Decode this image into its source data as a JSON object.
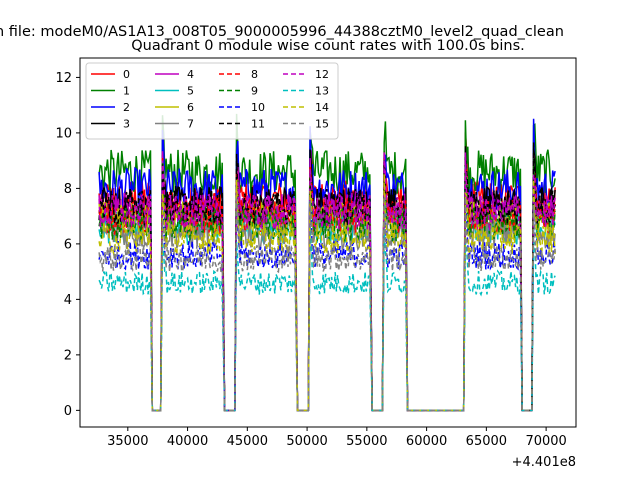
{
  "window": {
    "suptitle": "n file: modeM0/AS1A13_008T05_9000005996_44388cztM0_level2_quad_clean"
  },
  "chart_data": {
    "type": "line",
    "title": "Quadrant 0 module wise count rates with 100.0s bins.",
    "xlabel": "",
    "ylabel": "",
    "x_offset_label": "+4.401e8",
    "xlim": [
      31000,
      72500
    ],
    "ylim": [
      -0.6,
      12.7
    ],
    "xticks": [
      35000,
      40000,
      45000,
      50000,
      55000,
      60000,
      65000,
      70000
    ],
    "yticks": [
      0,
      2,
      4,
      6,
      8,
      10,
      12
    ],
    "grid": false,
    "legend_placement": "top-left",
    "legend_ncol": 4,
    "segments": [
      [
        32600,
        36900
      ],
      [
        37900,
        42950
      ],
      [
        44100,
        49050
      ],
      [
        50250,
        55300
      ],
      [
        56450,
        58250
      ],
      [
        63250,
        67850
      ],
      [
        68950,
        70800
      ]
    ],
    "zero_gaps": [
      [
        37050,
        37750
      ],
      [
        43100,
        43950
      ],
      [
        49200,
        50100
      ],
      [
        55450,
        56300
      ],
      [
        58400,
        63100
      ],
      [
        68000,
        68800
      ]
    ],
    "series": [
      {
        "name": "0",
        "color": "#ff0000",
        "dash": "solid",
        "mean": 7.6
      },
      {
        "name": "1",
        "color": "#008000",
        "dash": "solid",
        "mean": 8.6
      },
      {
        "name": "2",
        "color": "#0000ff",
        "dash": "solid",
        "mean": 8.0
      },
      {
        "name": "3",
        "color": "#000000",
        "dash": "solid",
        "mean": 7.4
      },
      {
        "name": "4",
        "color": "#bf00bf",
        "dash": "solid",
        "mean": 7.2
      },
      {
        "name": "5",
        "color": "#00bfbf",
        "dash": "solid",
        "mean": 6.6
      },
      {
        "name": "6",
        "color": "#bfbf00",
        "dash": "solid",
        "mean": 6.9
      },
      {
        "name": "7",
        "color": "#808080",
        "dash": "solid",
        "mean": 6.4
      },
      {
        "name": "8",
        "color": "#ff0000",
        "dash": "dashed",
        "mean": 7.0
      },
      {
        "name": "9",
        "color": "#008000",
        "dash": "dashed",
        "mean": 6.7
      },
      {
        "name": "10",
        "color": "#0000ff",
        "dash": "dashed",
        "mean": 5.6
      },
      {
        "name": "11",
        "color": "#000000",
        "dash": "dashed",
        "mean": 7.3
      },
      {
        "name": "12",
        "color": "#bf00bf",
        "dash": "dashed",
        "mean": 7.1
      },
      {
        "name": "13",
        "color": "#00bfbf",
        "dash": "dashed",
        "mean": 4.6
      },
      {
        "name": "14",
        "color": "#bfbf00",
        "dash": "dashed",
        "mean": 6.2
      },
      {
        "name": "15",
        "color": "#808080",
        "dash": "dashed",
        "mean": 5.5
      }
    ]
  }
}
